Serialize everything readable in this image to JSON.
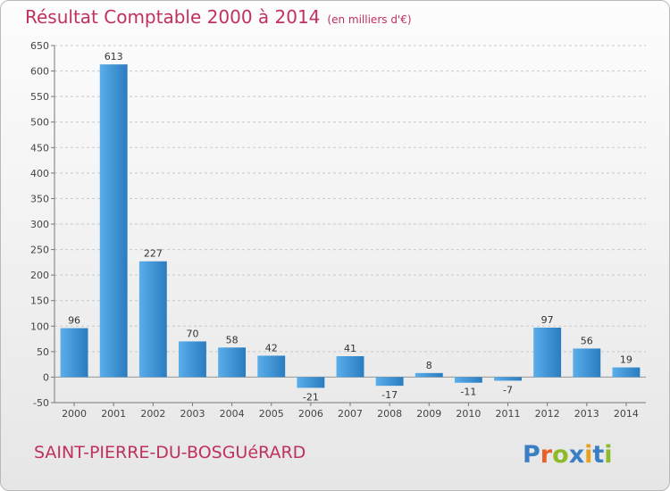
{
  "header": {
    "title": "Résultat Comptable 2000 à 2014",
    "subtitle": "(en milliers d'€)"
  },
  "footer": {
    "commune": "SAINT-PIERRE-DU-BOSGUéRARD",
    "logo_text": "Proxiti"
  },
  "colors": {
    "title": "#c0315d",
    "bar_light": "#5aaeea",
    "bar_dark": "#2a7cc0"
  },
  "chart_data": {
    "type": "bar",
    "title": "Résultat Comptable 2000 à 2014",
    "categories": [
      "2000",
      "2001",
      "2002",
      "2003",
      "2004",
      "2005",
      "2006",
      "2007",
      "2008",
      "2009",
      "2010",
      "2011",
      "2012",
      "2013",
      "2014"
    ],
    "values": [
      96,
      613,
      227,
      70,
      58,
      42,
      -21,
      41,
      -17,
      8,
      -11,
      -7,
      97,
      56,
      19
    ],
    "data_labels": [
      "96",
      "613",
      "227",
      "70",
      "58",
      "42",
      "-21",
      "41",
      "-17",
      "8",
      "-11",
      "-7",
      "97",
      "56",
      "19"
    ],
    "yticks": [
      -50,
      0,
      50,
      100,
      150,
      200,
      250,
      300,
      350,
      400,
      450,
      500,
      550,
      600,
      650
    ],
    "ylim": [
      -50,
      650
    ],
    "grid": true,
    "xlabel": "",
    "ylabel": ""
  }
}
